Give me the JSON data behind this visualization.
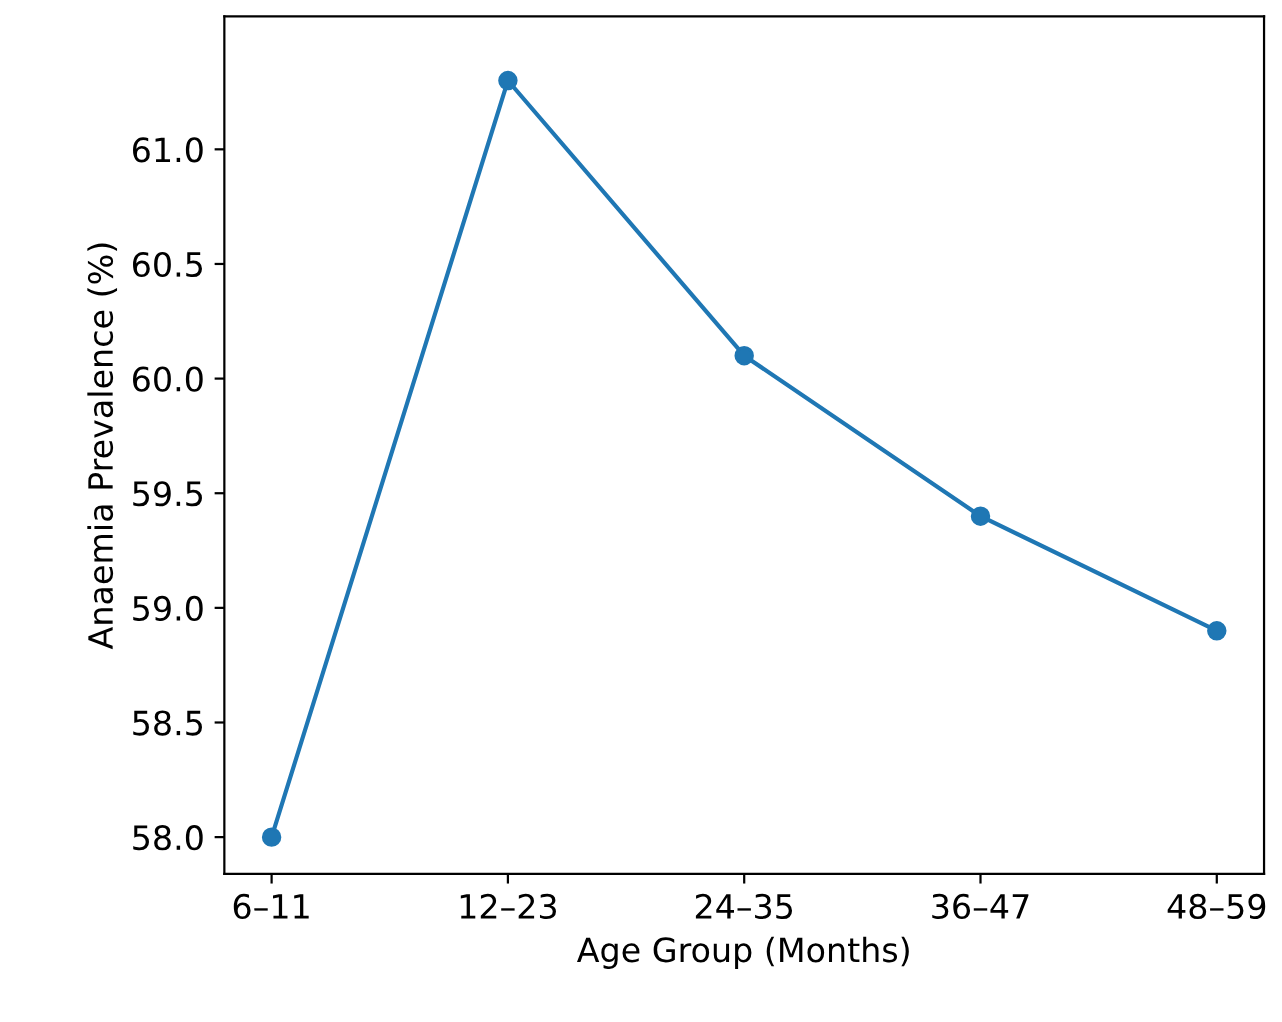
{
  "chart_data": {
    "type": "line",
    "xlabel": "Age Group (Months)",
    "ylabel": "Anaemia Prevalence (%)",
    "categories": [
      "6–11",
      "12–23",
      "24–35",
      "36–47",
      "48–59"
    ],
    "series": [
      {
        "color": "#1f77b4",
        "values": [
          58.0,
          61.3,
          60.1,
          59.4,
          58.9
        ]
      }
    ],
    "marker": "circle",
    "line_style": "solid",
    "grid": false,
    "legend": false,
    "ylim": [
      57.84,
      61.58
    ],
    "yticks": [
      {
        "value": 58.0,
        "label": "58.0"
      },
      {
        "value": 58.5,
        "label": "58.5"
      },
      {
        "value": 59.0,
        "label": "59.0"
      },
      {
        "value": 59.5,
        "label": "59.5"
      },
      {
        "value": 60.0,
        "label": "60.0"
      },
      {
        "value": 60.5,
        "label": "60.5"
      },
      {
        "value": 61.0,
        "label": "61.0"
      }
    ]
  }
}
